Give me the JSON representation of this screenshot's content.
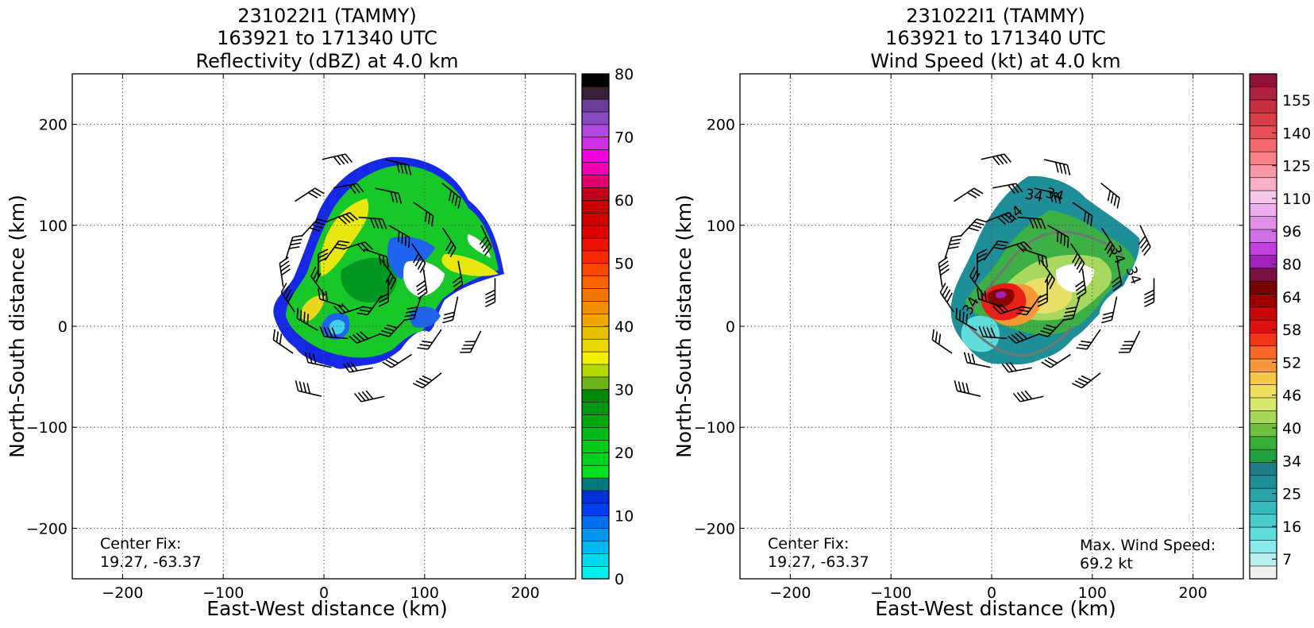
{
  "panels": [
    {
      "title_lines": [
        "231022I1 (TAMMY)",
        "163921 to 171340 UTC",
        "Reflectivity (dBZ) at 4.0 km"
      ],
      "xlabel": "East-West distance (km)",
      "ylabel": "North-South distance (km)",
      "center_fix_label": "Center Fix:",
      "center_fix_value": "19.27, -63.37",
      "max_label": "",
      "max_value": ""
    },
    {
      "title_lines": [
        "231022I1 (TAMMY)",
        "163921 to 171340 UTC",
        "Wind Speed (kt) at 4.0 km"
      ],
      "xlabel": "East-West distance (km)",
      "ylabel": "North-South distance (km)",
      "center_fix_label": "Center Fix:",
      "center_fix_value": "19.27, -63.37",
      "max_label": "Max. Wind Speed:",
      "max_value": "69.2 kt"
    }
  ],
  "chart_data": [
    {
      "type": "heatmap",
      "title": "231022I1 (TAMMY) 163921 to 171340 UTC Reflectivity (dBZ) at 4.0 km",
      "xlabel": "East-West distance (km)",
      "ylabel": "North-South distance (km)",
      "xlim": [
        -250,
        250
      ],
      "ylim": [
        -250,
        250
      ],
      "xticks": [
        -200,
        -100,
        0,
        100,
        200
      ],
      "yticks": [
        -200,
        -100,
        0,
        100,
        200
      ],
      "grid": true,
      "colorbar": {
        "min": 0,
        "max": 80,
        "ticks": [
          0,
          10,
          20,
          30,
          40,
          50,
          60,
          70,
          80
        ],
        "colors": [
          "#00f0f0",
          "#00d8ee",
          "#00b8f0",
          "#0096f0",
          "#0070ee",
          "#0040f0",
          "#0030d8",
          "#00787c",
          "#00e020",
          "#00d020",
          "#00c818",
          "#00b818",
          "#00a810",
          "#009810",
          "#008808",
          "#6cb418",
          "#b4d800",
          "#f0f000",
          "#ecd800",
          "#e8c000",
          "#f0a800",
          "#f09000",
          "#f07800",
          "#f86400",
          "#f84800",
          "#f82800",
          "#f01000",
          "#e00000",
          "#d00000",
          "#c80000",
          "#c00018",
          "#e00070",
          "#f000b0",
          "#f000e0",
          "#d030e8",
          "#b048e0",
          "#8848c0",
          "#683c98",
          "#382038",
          "#000000"
        ]
      },
      "center_fix": [
        19.27,
        -63.37
      ],
      "annotations": [
        "Center Fix:",
        "19.27, -63.37"
      ]
    },
    {
      "type": "heatmap",
      "title": "231022I1 (TAMMY) 163921 to 171340 UTC Wind Speed (kt) at 4.0 km",
      "xlabel": "East-West distance (km)",
      "ylabel": "North-South distance (km)",
      "xlim": [
        -250,
        250
      ],
      "ylim": [
        -250,
        250
      ],
      "xticks": [
        -200,
        -100,
        0,
        100,
        200
      ],
      "yticks": [
        -200,
        -100,
        0,
        100,
        200
      ],
      "grid": true,
      "colorbar": {
        "ticks": [
          7,
          16,
          25,
          34,
          40,
          46,
          52,
          58,
          64,
          80,
          96,
          110,
          125,
          140,
          155
        ],
        "colors": [
          "#f0f0f0",
          "#b8f0f0",
          "#88eaea",
          "#60dede",
          "#48cccc",
          "#38b8bc",
          "#2aa4aa",
          "#208e96",
          "#1e7e88",
          "#20a040",
          "#38b038",
          "#70c040",
          "#a8d858",
          "#d8e868",
          "#f0e060",
          "#f8c848",
          "#f89838",
          "#f86828",
          "#f03818",
          "#e01010",
          "#c80808",
          "#a00000",
          "#780000",
          "#781040",
          "#a020b8",
          "#c040e0",
          "#d070e8",
          "#e090e8",
          "#f0b0f0",
          "#f8c8e8",
          "#f8b0c8",
          "#f898a8",
          "#f88088",
          "#f06870",
          "#e85058",
          "#d84048",
          "#c83040",
          "#b02040",
          "#901038"
        ]
      },
      "center_fix": [
        19.27,
        -63.37
      ],
      "max_wind_speed_kt": 69.2,
      "contour_labels": [
        "34"
      ],
      "annotations": [
        "Center Fix:",
        "19.27, -63.37",
        "Max. Wind Speed:",
        "69.2 kt"
      ]
    }
  ]
}
